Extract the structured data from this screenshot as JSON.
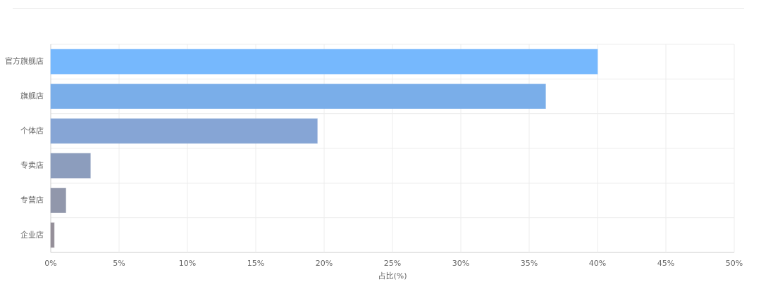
{
  "chart_data": {
    "type": "barh",
    "categories": [
      "官方旗舰店",
      "旗舰店",
      "个体店",
      "专卖店",
      "专营店",
      "企业店"
    ],
    "values": [
      40,
      36.2,
      19.5,
      2.9,
      1.1,
      0.25
    ],
    "colors": [
      "#76b8fd",
      "#7aaee9",
      "#86a5d5",
      "#8c9dbd",
      "#9197ab",
      "#958f99"
    ],
    "xlabel": "占比(%)",
    "xlim": [
      0,
      50
    ],
    "xticks": [
      {
        "value": 0,
        "label": "0%"
      },
      {
        "value": 5,
        "label": "5%"
      },
      {
        "value": 10,
        "label": "10%"
      },
      {
        "value": 15,
        "label": "15%"
      },
      {
        "value": 20,
        "label": "20%"
      },
      {
        "value": 25,
        "label": "25%"
      },
      {
        "value": 30,
        "label": "30%"
      },
      {
        "value": 35,
        "label": "35%"
      },
      {
        "value": 40,
        "label": "40%"
      },
      {
        "value": 45,
        "label": "45%"
      },
      {
        "value": 50,
        "label": "50%"
      }
    ],
    "grid": true
  }
}
